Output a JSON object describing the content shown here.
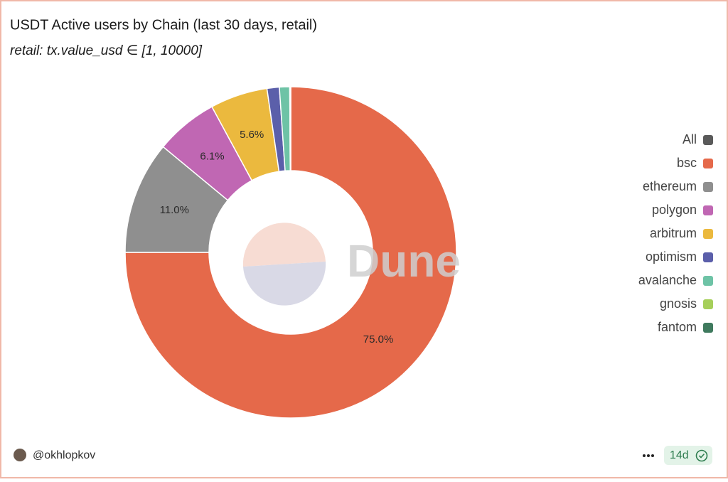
{
  "chart_data": {
    "type": "pie",
    "title": "USDT Active users by Chain (last 30 days, retail)",
    "subtitle": "retail: tx.value_usd ∈ [1, 10000]",
    "categories": [
      "All",
      "bsc",
      "ethereum",
      "polygon",
      "arbitrum",
      "optimism",
      "avalanche",
      "gnosis",
      "fantom"
    ],
    "values": [
      0,
      75.0,
      11.0,
      6.1,
      5.6,
      1.2,
      1.0,
      0.05,
      0.05
    ],
    "value_labels": [
      null,
      "75.0%",
      "11.0%",
      "6.1%",
      "5.6%",
      null,
      null,
      null,
      null
    ],
    "colors": [
      "#5a5a5a",
      "#e5694a",
      "#8f8f8f",
      "#c067b3",
      "#ebb93e",
      "#5b5faa",
      "#6ec3a6",
      "#a6cf5a",
      "#3f7a5e"
    ],
    "legend": "right"
  },
  "watermark": "Dune",
  "footer": {
    "author": "@okhlopkov",
    "age": "14d"
  }
}
